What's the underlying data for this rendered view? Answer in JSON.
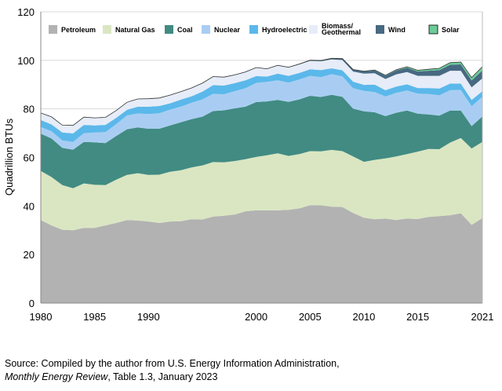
{
  "chart_data": {
    "type": "area",
    "stacked": true,
    "title": "",
    "xlabel": "",
    "ylabel": "Quadrillion BTUs",
    "ylim": [
      0,
      120
    ],
    "xlim": [
      1980,
      2021
    ],
    "yticks": [
      0,
      20,
      40,
      60,
      80,
      100,
      120
    ],
    "xtick_labels": [
      "1980",
      "1985",
      "1990",
      "2000",
      "2005",
      "2010",
      "2015",
      "2021"
    ],
    "grid": "horizontal",
    "legend_position": "top",
    "x": [
      1980,
      1981,
      1982,
      1983,
      1984,
      1985,
      1986,
      1987,
      1988,
      1989,
      1990,
      1991,
      1992,
      1993,
      1994,
      1995,
      1996,
      1997,
      1998,
      1999,
      2000,
      2001,
      2002,
      2003,
      2004,
      2005,
      2006,
      2007,
      2008,
      2009,
      2010,
      2011,
      2012,
      2013,
      2014,
      2015,
      2016,
      2017,
      2018,
      2019,
      2020,
      2021
    ],
    "series": [
      {
        "name": "Petroleum",
        "color": "#b2b2b2",
        "values": [
          34.2,
          32.0,
          30.2,
          30.0,
          31.0,
          31.0,
          32.0,
          33.0,
          34.2,
          34.0,
          33.6,
          33.0,
          33.6,
          33.7,
          34.5,
          34.4,
          35.6,
          36.0,
          36.5,
          37.8,
          38.2,
          38.2,
          38.2,
          38.4,
          39.0,
          40.3,
          40.3,
          39.7,
          39.6,
          37.1,
          35.2,
          34.5,
          34.8,
          34.2,
          34.8,
          34.6,
          35.5,
          35.8,
          36.2,
          37.0,
          32.2,
          35.0
        ]
      },
      {
        "name": "Natural Gas",
        "color": "#dae6c2",
        "values": [
          20.2,
          19.9,
          18.4,
          17.3,
          18.3,
          17.7,
          16.6,
          17.8,
          18.6,
          19.5,
          19.2,
          19.9,
          20.5,
          21.0,
          21.4,
          22.3,
          22.5,
          22.0,
          22.0,
          21.5,
          22.0,
          22.7,
          23.5,
          22.2,
          22.4,
          22.3,
          22.2,
          23.4,
          23.0,
          23.3,
          23.0,
          24.5,
          24.8,
          26.2,
          26.6,
          27.8,
          28.0,
          27.6,
          29.9,
          31.0,
          31.5,
          31.4
        ]
      },
      {
        "name": "Coal",
        "color": "#418b83",
        "values": [
          15.4,
          15.9,
          15.3,
          15.9,
          17.1,
          17.5,
          17.3,
          18.0,
          18.8,
          18.9,
          19.0,
          18.9,
          19.1,
          19.8,
          19.9,
          20.1,
          21.0,
          21.4,
          21.7,
          21.6,
          22.6,
          22.2,
          22.0,
          22.3,
          22.5,
          22.8,
          22.4,
          22.7,
          22.4,
          19.7,
          20.8,
          19.6,
          17.4,
          18.0,
          17.9,
          15.6,
          14.2,
          13.8,
          13.2,
          11.3,
          9.2,
          10.5
        ]
      },
      {
        "name": "Nuclear",
        "color": "#a9cdf2",
        "values": [
          2.7,
          3.0,
          3.1,
          3.2,
          3.6,
          4.1,
          4.5,
          4.9,
          5.7,
          5.7,
          6.1,
          6.4,
          6.5,
          6.4,
          6.7,
          7.1,
          7.1,
          6.6,
          7.1,
          7.6,
          7.9,
          8.0,
          8.1,
          7.9,
          8.2,
          8.2,
          8.2,
          8.5,
          8.4,
          8.4,
          8.4,
          8.3,
          8.1,
          8.2,
          8.3,
          8.3,
          8.4,
          8.4,
          8.4,
          8.5,
          8.2,
          8.1
        ]
      },
      {
        "name": "Hydroelectric",
        "color": "#5bb8ea",
        "values": [
          2.9,
          2.8,
          3.3,
          3.5,
          3.4,
          2.9,
          3.0,
          2.6,
          2.3,
          2.8,
          3.0,
          3.0,
          2.6,
          2.9,
          2.7,
          3.2,
          3.6,
          3.6,
          3.3,
          3.3,
          2.8,
          2.2,
          2.7,
          2.8,
          2.7,
          2.7,
          2.9,
          2.4,
          2.5,
          2.7,
          2.5,
          3.1,
          2.6,
          2.6,
          2.5,
          2.3,
          2.5,
          2.8,
          2.7,
          2.6,
          2.6,
          2.3
        ]
      },
      {
        "name": "Biomass/ Geothermal",
        "color": "#e6ecf8",
        "values": [
          2.9,
          3.1,
          3.0,
          3.3,
          3.2,
          3.1,
          3.1,
          3.0,
          3.1,
          3.2,
          3.2,
          3.2,
          3.3,
          3.2,
          3.3,
          3.4,
          3.4,
          3.4,
          3.3,
          3.3,
          3.4,
          3.1,
          3.3,
          3.4,
          3.5,
          3.5,
          3.6,
          3.7,
          4.2,
          4.2,
          4.6,
          4.7,
          4.6,
          5.0,
          5.1,
          5.0,
          5.0,
          5.2,
          5.3,
          5.3,
          5.2,
          5.3
        ]
      },
      {
        "name": "Wind",
        "color": "#476982",
        "values": [
          0.0,
          0.0,
          0.0,
          0.0,
          0.0,
          0.0,
          0.0,
          0.0,
          0.0,
          0.0,
          0.03,
          0.03,
          0.03,
          0.03,
          0.04,
          0.03,
          0.03,
          0.03,
          0.03,
          0.05,
          0.06,
          0.07,
          0.1,
          0.12,
          0.14,
          0.18,
          0.26,
          0.34,
          0.55,
          0.72,
          0.92,
          1.17,
          1.34,
          1.6,
          1.73,
          1.78,
          2.1,
          2.34,
          2.48,
          2.63,
          2.8,
          3.2
        ]
      },
      {
        "name": "Solar",
        "color": "#6ccc98",
        "values": [
          0.0,
          0.0,
          0.0,
          0.0,
          0.0,
          0.0,
          0.0,
          0.0,
          0.0,
          0.0,
          0.06,
          0.06,
          0.06,
          0.07,
          0.07,
          0.07,
          0.07,
          0.07,
          0.07,
          0.07,
          0.06,
          0.06,
          0.06,
          0.06,
          0.06,
          0.06,
          0.07,
          0.08,
          0.09,
          0.1,
          0.13,
          0.17,
          0.23,
          0.31,
          0.43,
          0.53,
          0.62,
          0.78,
          0.86,
          0.98,
          1.2,
          1.6
        ]
      }
    ]
  },
  "source": {
    "line1": "Source: Compiled by the author from U.S. Energy Information Administration,",
    "line2_italic": "Monthly Energy Review",
    "line2_rest": ", Table 1.3, January 2023"
  }
}
